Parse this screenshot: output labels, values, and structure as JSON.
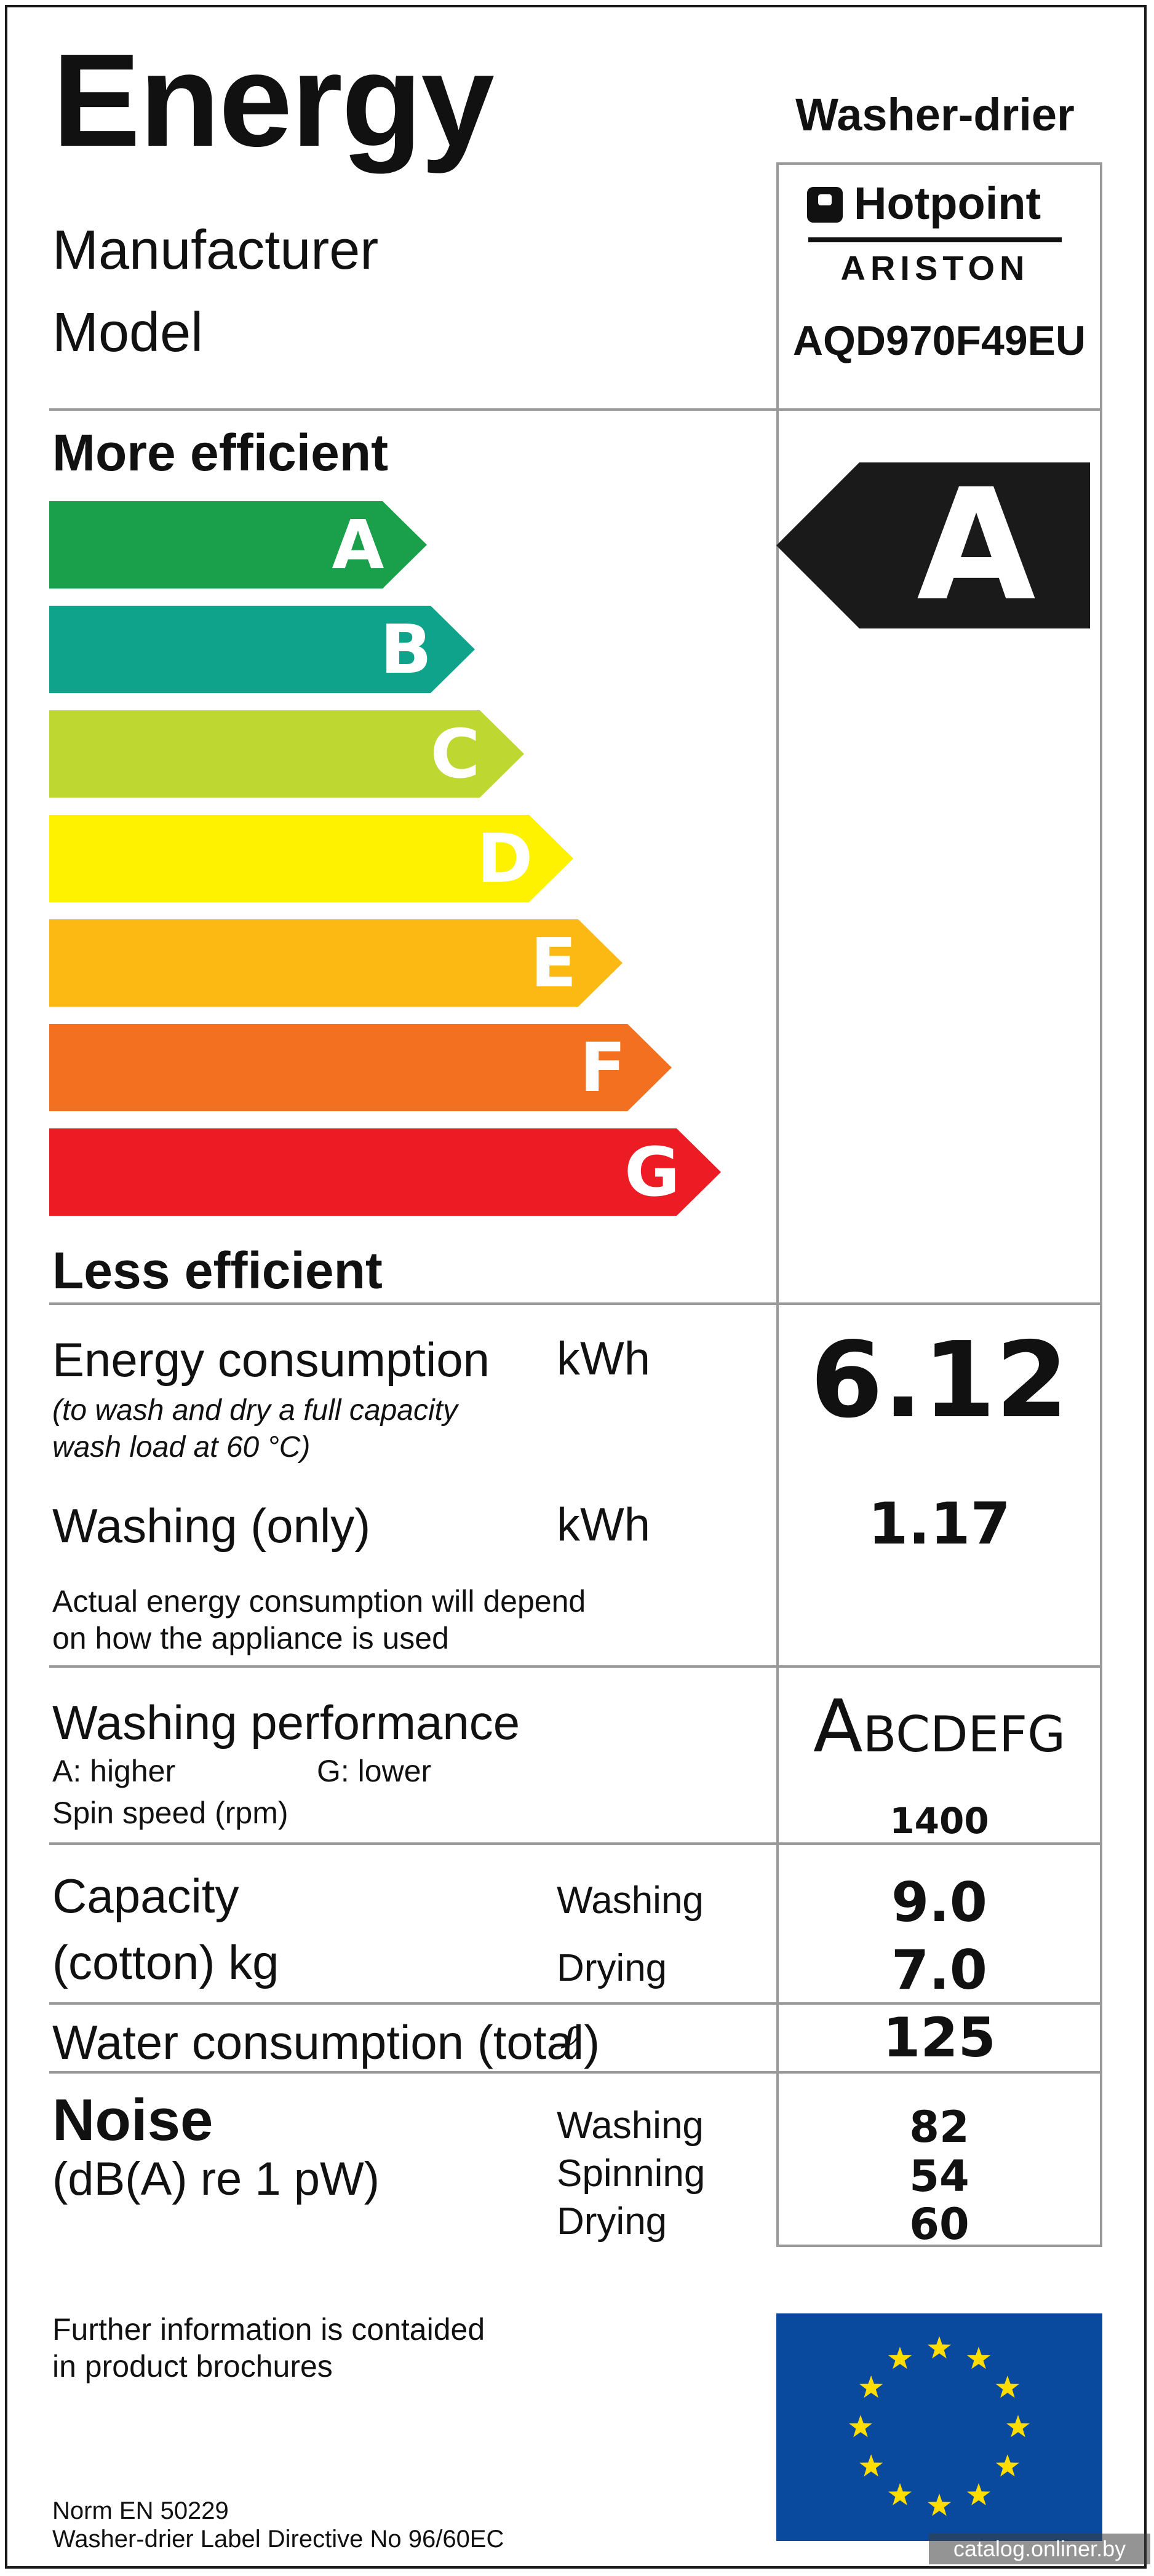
{
  "header": {
    "title": "Energy",
    "appliance_type": "Washer-drier",
    "manufacturer_label": "Manufacturer",
    "model_label": "Model",
    "brand_name": "Hotpoint",
    "brand_sub": "ARISTON",
    "model_value": "AQD970F49EU"
  },
  "scale": {
    "more_label": "More efficient",
    "less_label": "Less efficient",
    "classes": [
      {
        "letter": "A",
        "color": "#1aa04a"
      },
      {
        "letter": "B",
        "color": "#0ea38a"
      },
      {
        "letter": "C",
        "color": "#bfd731"
      },
      {
        "letter": "D",
        "color": "#fff200"
      },
      {
        "letter": "E",
        "color": "#fdb913"
      },
      {
        "letter": "F",
        "color": "#f37021"
      },
      {
        "letter": "G",
        "color": "#ed1c24"
      }
    ],
    "rating": "A",
    "rating_color": "#1a1a1a"
  },
  "energy": {
    "label": "Energy consumption",
    "unit": "kWh",
    "note_line1": "(to wash and dry a full capacity",
    "note_line2": "wash load at 60 °C)",
    "value": "6.12",
    "washing_label": "Washing (only)",
    "washing_unit": "kWh",
    "washing_value": "1.17",
    "actual_line1": "Actual energy consumption will depend",
    "actual_line2": "on how the appliance is used"
  },
  "performance": {
    "label": "Washing performance",
    "higher": "A: higher",
    "lower": "G: lower",
    "spin_label": "Spin speed (rpm)",
    "class_first": "A",
    "class_rest": "BCDEFG",
    "spin_value": "1400"
  },
  "capacity": {
    "label_line1": "Capacity",
    "label_line2": "(cotton) kg",
    "washing_label": "Washing",
    "drying_label": "Drying",
    "washing_value": "9.0",
    "drying_value": "7.0"
  },
  "water": {
    "label": "Water consumption (total)",
    "unit": "ℓ",
    "value": "125"
  },
  "noise": {
    "label": "Noise",
    "unit": "(dB(A) re 1 pW)",
    "washing_label": "Washing",
    "spinning_label": "Spinning",
    "drying_label": "Drying",
    "washing_value": "82",
    "spinning_value": "54",
    "drying_value": "60"
  },
  "footer": {
    "info_line1": "Further information is contaided",
    "info_line2": "in product brochures",
    "norm": "Norm EN 50229",
    "directive": "Washer-drier Label Directive No 96/60EC",
    "watermark": "catalog.onliner.by",
    "eu_flag_color": "#0a4a9e",
    "eu_star_color": "#ffdd00"
  }
}
